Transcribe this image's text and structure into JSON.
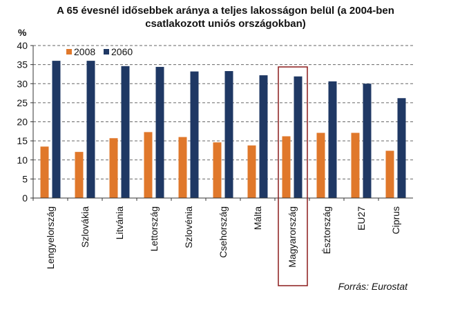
{
  "chart_data": {
    "type": "bar",
    "title_lines": [
      "A 65 évesnél idősebbek aránya a teljes lakosságon belül (a 2004-ben",
      "csatlakozott uniós országokban)"
    ],
    "ylabel": "%",
    "ylim": [
      0,
      40
    ],
    "yticks": [
      "0",
      "5",
      "10",
      "15",
      "20",
      "25",
      "30",
      "35",
      "40"
    ],
    "grid": true,
    "legend_position": "top-left",
    "categories": [
      "Lengyelország",
      "Szlovákia",
      "Litvánia",
      "Lettország",
      "Szlovénia",
      "Csehország",
      "Málta",
      "Magyarország",
      "Észtország",
      "EU27",
      "Ciprus"
    ],
    "highlight_category": "Magyarország",
    "series": [
      {
        "name": "2008",
        "color": "#e0782b",
        "values": [
          13.5,
          12.1,
          15.7,
          17.3,
          16.0,
          14.6,
          13.8,
          16.2,
          17.1,
          17.1,
          12.4
        ]
      },
      {
        "name": "2060",
        "color": "#1f3864",
        "values": [
          36.0,
          36.0,
          34.6,
          34.4,
          33.2,
          33.3,
          32.2,
          31.9,
          30.6,
          30.0,
          26.2
        ]
      }
    ],
    "source": "Forrás: Eurostat",
    "highlight_color": "#8b1a1a"
  }
}
